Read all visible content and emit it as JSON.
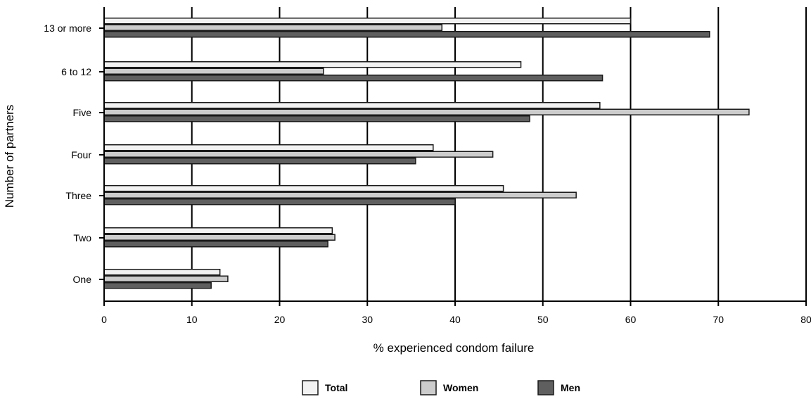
{
  "chart_data": {
    "type": "bar",
    "orientation": "horizontal",
    "title": "",
    "xlabel": "% experienced condom failure",
    "ylabel": "Number of partners",
    "xlim": [
      0,
      80
    ],
    "xticks": [
      0,
      10,
      20,
      30,
      40,
      50,
      60,
      70,
      80
    ],
    "grid": "vertical major gridlines",
    "legend_position": "bottom",
    "categories": [
      "13 or more",
      "6 to 12",
      "Five",
      "Four",
      "Three",
      "Two",
      "One"
    ],
    "series": [
      {
        "name": "Total",
        "color": "#f2f2f2",
        "values": [
          60,
          47.5,
          56.5,
          37.5,
          45.5,
          26,
          13.2
        ]
      },
      {
        "name": "Women",
        "color": "#cccccc",
        "values": [
          38.5,
          25,
          73.5,
          44.3,
          53.8,
          26.3,
          14.1
        ]
      },
      {
        "name": "Men",
        "color": "#5f5f5f",
        "values": [
          69,
          56.8,
          48.5,
          35.5,
          40,
          25.5,
          12.2
        ]
      }
    ]
  }
}
